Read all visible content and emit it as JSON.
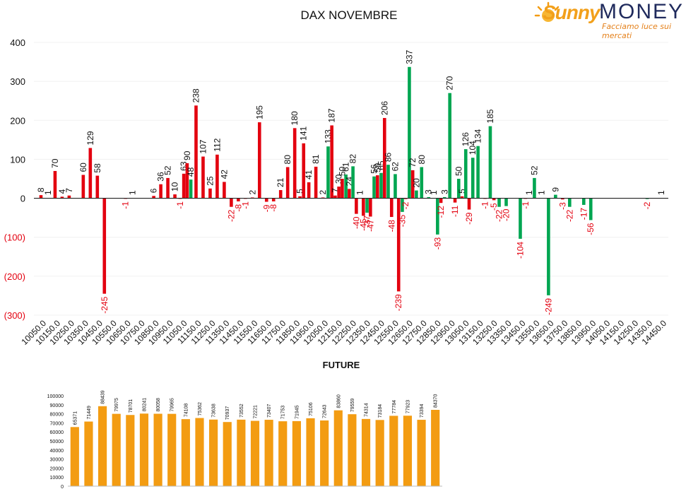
{
  "logo": {
    "word_1": "Sunny",
    "word_2": "MONEY",
    "tagline": "Facciamo luce sui mercati"
  },
  "colors": {
    "positive_bar": "#00a651",
    "negative_bar": "#e3000f",
    "future_bar": "#f39c12",
    "negative_label": "#e3000f",
    "text": "#111111"
  },
  "chart_data": [
    {
      "type": "bar",
      "title": "DAX NOVEMBRE",
      "xlabel": "",
      "ylabel": "",
      "ylim": [
        -300,
        400
      ],
      "y_ticks": [
        400,
        300,
        200,
        100,
        0,
        -100,
        -200,
        -300
      ],
      "y_tick_labels": [
        "400",
        "300",
        "200",
        "100",
        "0",
        "(100)",
        "(200)",
        "(300)"
      ],
      "grid": true,
      "legend": "none",
      "categories": [
        "10050.0",
        "10150.0",
        "10250.0",
        "10350.0",
        "10450.0",
        "10550.0",
        "10650.0",
        "10750.0",
        "10850.0",
        "10950.0",
        "11050.0",
        "11150.0",
        "11250.0",
        "11350.0",
        "11450.0",
        "11550.0",
        "11650.0",
        "11750.0",
        "11850.0",
        "11950.0",
        "12050.0",
        "12150.0",
        "12250.0",
        "12350.0",
        "12450.0",
        "12550.0",
        "12650.0",
        "12750.0",
        "12850.0",
        "12950.0",
        "13050.0",
        "13150.0",
        "13250.0",
        "13350.0",
        "13450.0",
        "13550.0",
        "13650.0",
        "13750.0",
        "13850.0",
        "13950.0",
        "14050.0",
        "14150.0",
        "14250.0",
        "14350.0",
        "14450.0"
      ],
      "bars": [
        {
          "strike": 10050,
          "value": 8,
          "color": "red"
        },
        {
          "strike": 10100,
          "value": 1,
          "color": "red"
        },
        {
          "strike": 10150,
          "value": 70,
          "color": "red"
        },
        {
          "strike": 10200,
          "value": 4,
          "color": "red"
        },
        {
          "strike": 10250,
          "value": 7,
          "color": "red"
        },
        {
          "strike": 10350,
          "value": 60,
          "color": "red"
        },
        {
          "strike": 10400,
          "value": 129,
          "color": "red"
        },
        {
          "strike": 10450,
          "value": 58,
          "color": "red"
        },
        {
          "strike": 10500,
          "value": -245,
          "color": "red"
        },
        {
          "strike": 10650,
          "value": -1,
          "color": "red"
        },
        {
          "strike": 10700,
          "value": 1,
          "color": "red"
        },
        {
          "strike": 10850,
          "value": 6,
          "color": "red"
        },
        {
          "strike": 10900,
          "value": 36,
          "color": "red"
        },
        {
          "strike": 10950,
          "value": 52,
          "color": "red"
        },
        {
          "strike": 11000,
          "value": 10,
          "color": "red"
        },
        {
          "strike": 11050,
          "value": -1,
          "color": "red"
        },
        {
          "strike": 11050,
          "value": 63,
          "color": "red"
        },
        {
          "strike": 11100,
          "value": 90,
          "color": "red"
        },
        {
          "strike": 11100,
          "value": 48,
          "color": "green"
        },
        {
          "strike": 11150,
          "value": 238,
          "color": "red"
        },
        {
          "strike": 11200,
          "value": 107,
          "color": "red"
        },
        {
          "strike": 11250,
          "value": 25,
          "color": "red"
        },
        {
          "strike": 11300,
          "value": 112,
          "color": "red"
        },
        {
          "strike": 11350,
          "value": 42,
          "color": "red"
        },
        {
          "strike": 11400,
          "value": -22,
          "color": "red"
        },
        {
          "strike": 11450,
          "value": -8,
          "color": "red"
        },
        {
          "strike": 11500,
          "value": -1,
          "color": "red"
        },
        {
          "strike": 11550,
          "value": 2,
          "color": "red"
        },
        {
          "strike": 11600,
          "value": 195,
          "color": "red"
        },
        {
          "strike": 11650,
          "value": -9,
          "color": "red"
        },
        {
          "strike": 11700,
          "value": -8,
          "color": "red"
        },
        {
          "strike": 11750,
          "value": 21,
          "color": "red"
        },
        {
          "strike": 11800,
          "value": 80,
          "color": "red"
        },
        {
          "strike": 11850,
          "value": 180,
          "color": "red"
        },
        {
          "strike": 11900,
          "value": 5,
          "color": "red"
        },
        {
          "strike": 11900,
          "value": 141,
          "color": "red"
        },
        {
          "strike": 11950,
          "value": 41,
          "color": "red"
        },
        {
          "strike": 12000,
          "value": 81,
          "color": "red"
        },
        {
          "strike": 12050,
          "value": 2,
          "color": "red"
        },
        {
          "strike": 12100,
          "value": 133,
          "color": "green"
        },
        {
          "strike": 12100,
          "value": 187,
          "color": "red"
        },
        {
          "strike": 12150,
          "value": 7,
          "color": "red"
        },
        {
          "strike": 12150,
          "value": 30,
          "color": "red"
        },
        {
          "strike": 12200,
          "value": 50,
          "color": "red"
        },
        {
          "strike": 12200,
          "value": 61,
          "color": "green"
        },
        {
          "strike": 12250,
          "value": 24,
          "color": "red"
        },
        {
          "strike": 12250,
          "value": 82,
          "color": "green"
        },
        {
          "strike": 12300,
          "value": -40,
          "color": "red"
        },
        {
          "strike": 12300,
          "value": 1,
          "color": "green"
        },
        {
          "strike": 12350,
          "value": -45,
          "color": "red"
        },
        {
          "strike": 12350,
          "value": -37,
          "color": "green"
        },
        {
          "strike": 12400,
          "value": -47,
          "color": "red"
        },
        {
          "strike": 12400,
          "value": 56,
          "color": "green"
        },
        {
          "strike": 12450,
          "value": 59,
          "color": "red"
        },
        {
          "strike": 12450,
          "value": 65,
          "color": "green"
        },
        {
          "strike": 12500,
          "value": 206,
          "color": "red"
        },
        {
          "strike": 12500,
          "value": 86,
          "color": "green"
        },
        {
          "strike": 12550,
          "value": -48,
          "color": "red"
        },
        {
          "strike": 12550,
          "value": 62,
          "color": "green"
        },
        {
          "strike": 12600,
          "value": -239,
          "color": "red"
        },
        {
          "strike": 12600,
          "value": -35,
          "color": "green"
        },
        {
          "strike": 12650,
          "value": -2,
          "color": "red"
        },
        {
          "strike": 12650,
          "value": 337,
          "color": "green"
        },
        {
          "strike": 12700,
          "value": 72,
          "color": "red"
        },
        {
          "strike": 12700,
          "value": 20,
          "color": "green"
        },
        {
          "strike": 12750,
          "value": 80,
          "color": "green"
        },
        {
          "strike": 12800,
          "value": 3,
          "color": "green"
        },
        {
          "strike": 12850,
          "value": 1,
          "color": "green"
        },
        {
          "strike": 12850,
          "value": -93,
          "color": "green"
        },
        {
          "strike": 12900,
          "value": -12,
          "color": "red"
        },
        {
          "strike": 12900,
          "value": 3,
          "color": "green"
        },
        {
          "strike": 12950,
          "value": 270,
          "color": "green"
        },
        {
          "strike": 13000,
          "value": -11,
          "color": "red"
        },
        {
          "strike": 13000,
          "value": 50,
          "color": "green"
        },
        {
          "strike": 13050,
          "value": 5,
          "color": "red"
        },
        {
          "strike": 13050,
          "value": 126,
          "color": "green"
        },
        {
          "strike": 13100,
          "value": -29,
          "color": "red"
        },
        {
          "strike": 13100,
          "value": 104,
          "color": "green"
        },
        {
          "strike": 13150,
          "value": 134,
          "color": "green"
        },
        {
          "strike": 13200,
          "value": -1,
          "color": "red"
        },
        {
          "strike": 13250,
          "value": 185,
          "color": "green"
        },
        {
          "strike": 13250,
          "value": -5,
          "color": "red"
        },
        {
          "strike": 13300,
          "value": -22,
          "color": "green"
        },
        {
          "strike": 13350,
          "value": -20,
          "color": "green"
        },
        {
          "strike": 13450,
          "value": -104,
          "color": "green"
        },
        {
          "strike": 13500,
          "value": -1,
          "color": "red"
        },
        {
          "strike": 13500,
          "value": 1,
          "color": "green"
        },
        {
          "strike": 13550,
          "value": 52,
          "color": "green"
        },
        {
          "strike": 13600,
          "value": 1,
          "color": "green"
        },
        {
          "strike": 13650,
          "value": -249,
          "color": "green"
        },
        {
          "strike": 13700,
          "value": 9,
          "color": "green"
        },
        {
          "strike": 13750,
          "value": -3,
          "color": "red"
        },
        {
          "strike": 13800,
          "value": -22,
          "color": "green"
        },
        {
          "strike": 13900,
          "value": -17,
          "color": "green"
        },
        {
          "strike": 13950,
          "value": -56,
          "color": "green"
        },
        {
          "strike": 14350,
          "value": -2,
          "color": "green"
        },
        {
          "strike": 14450,
          "value": 1,
          "color": "green"
        }
      ]
    },
    {
      "type": "bar",
      "title": "FUTURE",
      "xlabel": "",
      "ylabel": "",
      "ylim": [
        0,
        100000
      ],
      "y_ticks": [
        100000,
        90000,
        80000,
        70000,
        60000,
        50000,
        40000,
        30000,
        20000,
        10000,
        0
      ],
      "grid": false,
      "legend": "none",
      "values": [
        65371,
        71449,
        88439,
        79975,
        78701,
        80241,
        80058,
        79965,
        74108,
        75362,
        73638,
        70937,
        73552,
        72221,
        73407,
        71753,
        71945,
        75106,
        72643,
        83860,
        79559,
        74314,
        73184,
        77784,
        77923,
        73394,
        84370
      ]
    }
  ]
}
